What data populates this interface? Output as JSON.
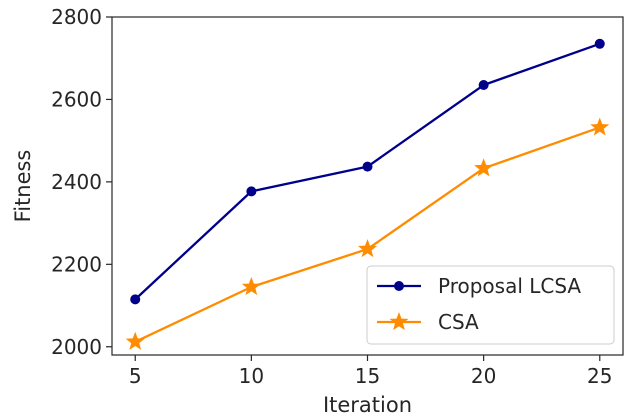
{
  "chart_data": {
    "type": "line",
    "title": "",
    "xlabel": "Iteration",
    "ylabel": "Fitness",
    "x": [
      5,
      10,
      15,
      20,
      25
    ],
    "xticks": [
      "5",
      "10",
      "15",
      "20",
      "25"
    ],
    "yticks": [
      "2000",
      "2200",
      "2400",
      "2600",
      "2800"
    ],
    "xlim": [
      4.0,
      26.0
    ],
    "ylim": [
      1980,
      2800
    ],
    "grid": false,
    "legend_position": "lower-right",
    "series": [
      {
        "name": "Proposal LCSA",
        "values": [
          2115,
          2377,
          2437,
          2635,
          2735
        ],
        "color": "#00008b",
        "marker": "circle"
      },
      {
        "name": "CSA",
        "values": [
          2012,
          2145,
          2237,
          2433,
          2532
        ],
        "color": "#ff8c00",
        "marker": "star"
      }
    ]
  }
}
